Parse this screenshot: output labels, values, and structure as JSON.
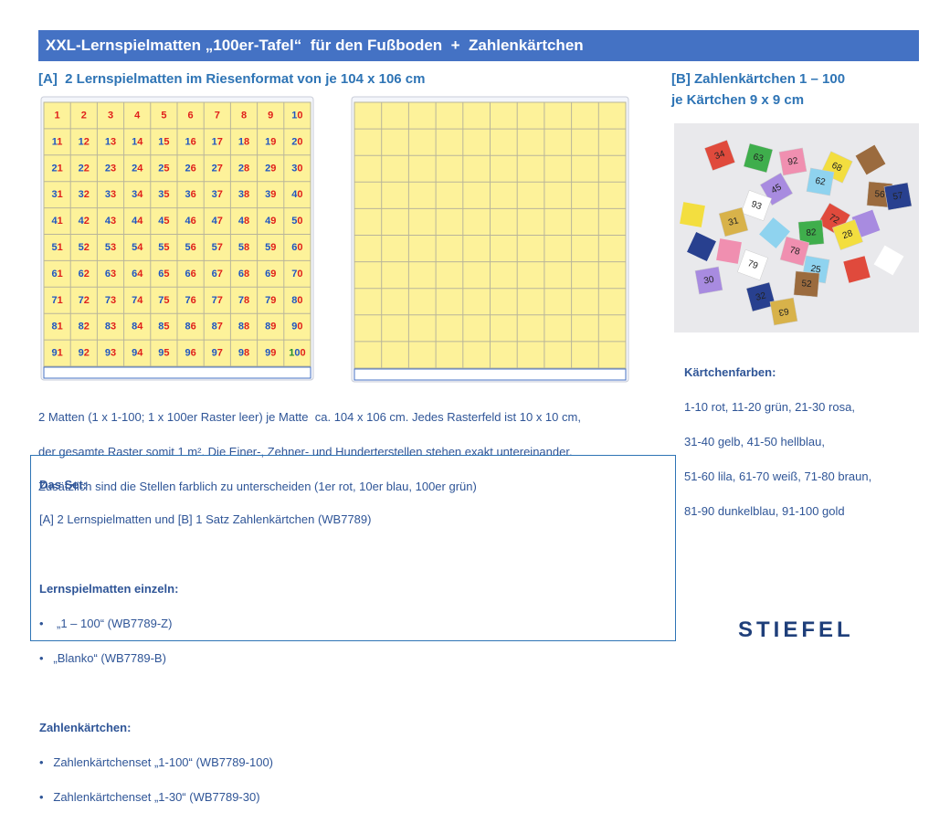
{
  "header": {
    "title": "XXL-Lernspielmatten „100er-Tafel“  für den Fußboden  +  Zahlenkärtchen"
  },
  "section_a": {
    "heading": "[A]  2 Lernspielmatten im Riesenformat von je 104 x 106 cm",
    "mat_numbers": [
      1,
      2,
      3,
      4,
      5,
      6,
      7,
      8,
      9,
      10,
      11,
      12,
      13,
      14,
      15,
      16,
      17,
      18,
      19,
      20,
      21,
      22,
      23,
      24,
      25,
      26,
      27,
      28,
      29,
      30,
      31,
      32,
      33,
      34,
      35,
      36,
      37,
      38,
      39,
      40,
      41,
      42,
      43,
      44,
      45,
      46,
      47,
      48,
      49,
      50,
      51,
      52,
      53,
      54,
      55,
      56,
      57,
      58,
      59,
      60,
      61,
      62,
      63,
      64,
      65,
      66,
      67,
      68,
      69,
      70,
      71,
      72,
      73,
      74,
      75,
      76,
      77,
      78,
      79,
      80,
      81,
      82,
      83,
      84,
      85,
      86,
      87,
      88,
      89,
      90,
      91,
      92,
      93,
      94,
      95,
      96,
      97,
      98,
      99,
      100
    ],
    "description": [
      "2 Matten (1 x 1-100; 1 x 100er Raster leer) je Matte  ca. 104 x 106 cm. Jedes Rasterfeld ist 10 x 10 cm,",
      "der gesamte Raster somit 1 m². Die Einer-, Zehner- und Hunderterstellen stehen exakt untereinander.",
      "Zusätzlich sind die Stellen farblich zu unterscheiden (1er rot, 10er blau, 100er grün)"
    ]
  },
  "section_b": {
    "heading": [
      "[B] Zahlenkärtchen 1 – 100",
      "je Kärtchen 9 x 9 cm"
    ],
    "card_labels": [
      "34",
      "63",
      "92",
      "68",
      "62",
      "45",
      "93",
      "56",
      "57",
      "31",
      "72",
      "82",
      "78",
      "28",
      "25",
      "30",
      "79",
      "52",
      "32",
      "63"
    ],
    "colors_title": "Kärtchenfarben:",
    "colors_lines": [
      "1-10 rot, 11-20 grün, 21-30 rosa,",
      "31-40 gelb, 41-50 hellblau,",
      "51-60 lila, 61-70 weiß, 71-80 braun,",
      "81-90 dunkelblau, 91-100 gold"
    ]
  },
  "set_box": {
    "title": "Das Set:",
    "text": "[A] 2 Lernspielmatten und [B] 1 Satz Zahlenkärtchen (WB7789)",
    "mats_title": "Lernspielmatten einzeln:",
    "mats_items": [
      "„1 – 100“ (WB7789-Z)",
      "„Blanko“ (WB7789-B)"
    ],
    "cards_title": "Zahlenkärtchen:",
    "cards_items": [
      "Zahlenkärtchenset „1-100“ (WB7789-100)",
      "Zahlenkärtchenset „1-30“ (WB7789-30)"
    ]
  },
  "logo": "STIEFEL"
}
